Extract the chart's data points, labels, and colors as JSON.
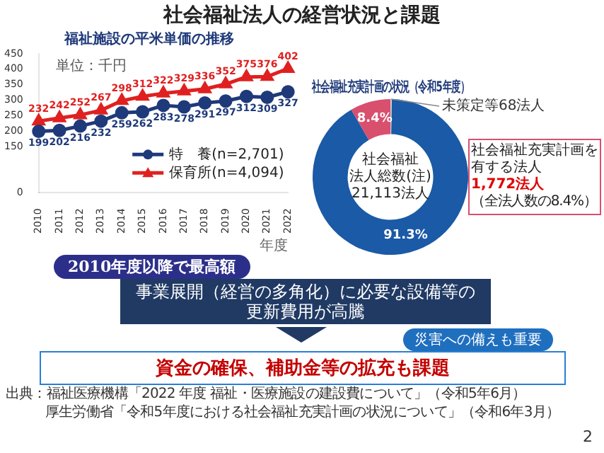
{
  "chart_data": [
    {
      "type": "other",
      "title": "社会福祉法人の経営状況と課題",
      "annotations": [
        "2010年度以降で最高額",
        "事業展開（経営の多角化）に必要な設備等の更新費用が高騰",
        "災害への備えも重要",
        "資金の確保、補助金等の拡充も課題",
        "出典：福祉医療機構「2022 年度 福祉・医療施設の建設費について」（令和5年6月）",
        "厚生労働省「令和5年度における社会福祉充実計画の状況について」（令和6年3月）",
        "2"
      ]
    },
    {
      "type": "line",
      "title": "福祉施設の平米単価の推移",
      "xlabel": "年度",
      "annotations": [
        "単位：千円"
      ],
      "categories": [
        "2010",
        "2011",
        "2012",
        "2013",
        "2014",
        "2015",
        "2016",
        "2017",
        "2018",
        "2019",
        "2020",
        "2021",
        "2022"
      ],
      "series": [
        {
          "name": "特　養(n=2,701)",
          "color": "#1f3a7a",
          "marker": "circle",
          "values": [
            199,
            202,
            216,
            232,
            259,
            262,
            283,
            278,
            291,
            297,
            312,
            309,
            327
          ]
        },
        {
          "name": "保育所(n=4,094)",
          "color": "#e02020",
          "marker": "triangle",
          "values": [
            232,
            242,
            252,
            267,
            298,
            312,
            322,
            329,
            336,
            352,
            375,
            376,
            402
          ]
        }
      ],
      "ylim": [
        0,
        450
      ],
      "yticks": [
        0,
        150,
        200,
        250,
        300,
        350,
        400,
        450
      ],
      "data_labels": true,
      "legend": "bottom right",
      "grid": false
    },
    {
      "type": "donut",
      "title": "社会福祉充実計画の状況（令和5年度）",
      "categories": [
        "未策定等68法人",
        null,
        null
      ],
      "values": [
        0.3,
        91.3,
        8.4
      ],
      "colors": [
        "#cfcfcf",
        "#1a5aa6",
        "#d94f6e"
      ],
      "value_labels": [
        null,
        "91.3%",
        "8.4%"
      ],
      "annotations": [
        "社会福祉",
        "法人総数(注)",
        "21,113法人",
        "社会福祉充実計画を",
        "有する法人",
        "1,772法人",
        "（全法人数の8.4%）"
      ]
    }
  ]
}
